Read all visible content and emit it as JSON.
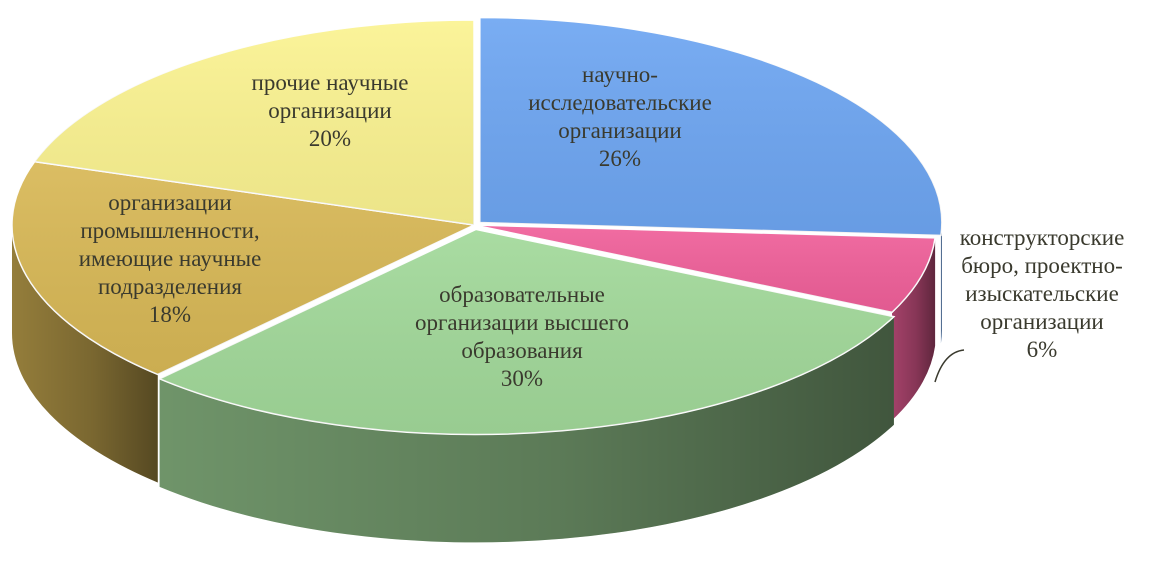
{
  "chart_data": {
    "type": "pie",
    "three_d": true,
    "title": "",
    "slices": [
      {
        "label_lines": [
          "научно-",
          "исследовательские",
          "организации",
          "26%"
        ],
        "value": 26,
        "color": "#6ea6f2"
      },
      {
        "label_lines": [
          "конструкторские",
          "бюро, проектно-",
          "изыскательские",
          "организации",
          "6%"
        ],
        "value": 6,
        "color": "#f0609a"
      },
      {
        "label_lines": [
          "образовательные",
          "организации высшего",
          "образования",
          "30%"
        ],
        "value": 30,
        "color": "#a2d99a"
      },
      {
        "label_lines": [
          "организации",
          "промышленности,",
          "имеющие научные",
          "подразделения",
          "18%"
        ],
        "value": 18,
        "color": "#d8b856"
      },
      {
        "label_lines": [
          "прочие научные",
          "организации",
          "20%"
        ],
        "value": 20,
        "color": "#fbf391"
      }
    ]
  }
}
